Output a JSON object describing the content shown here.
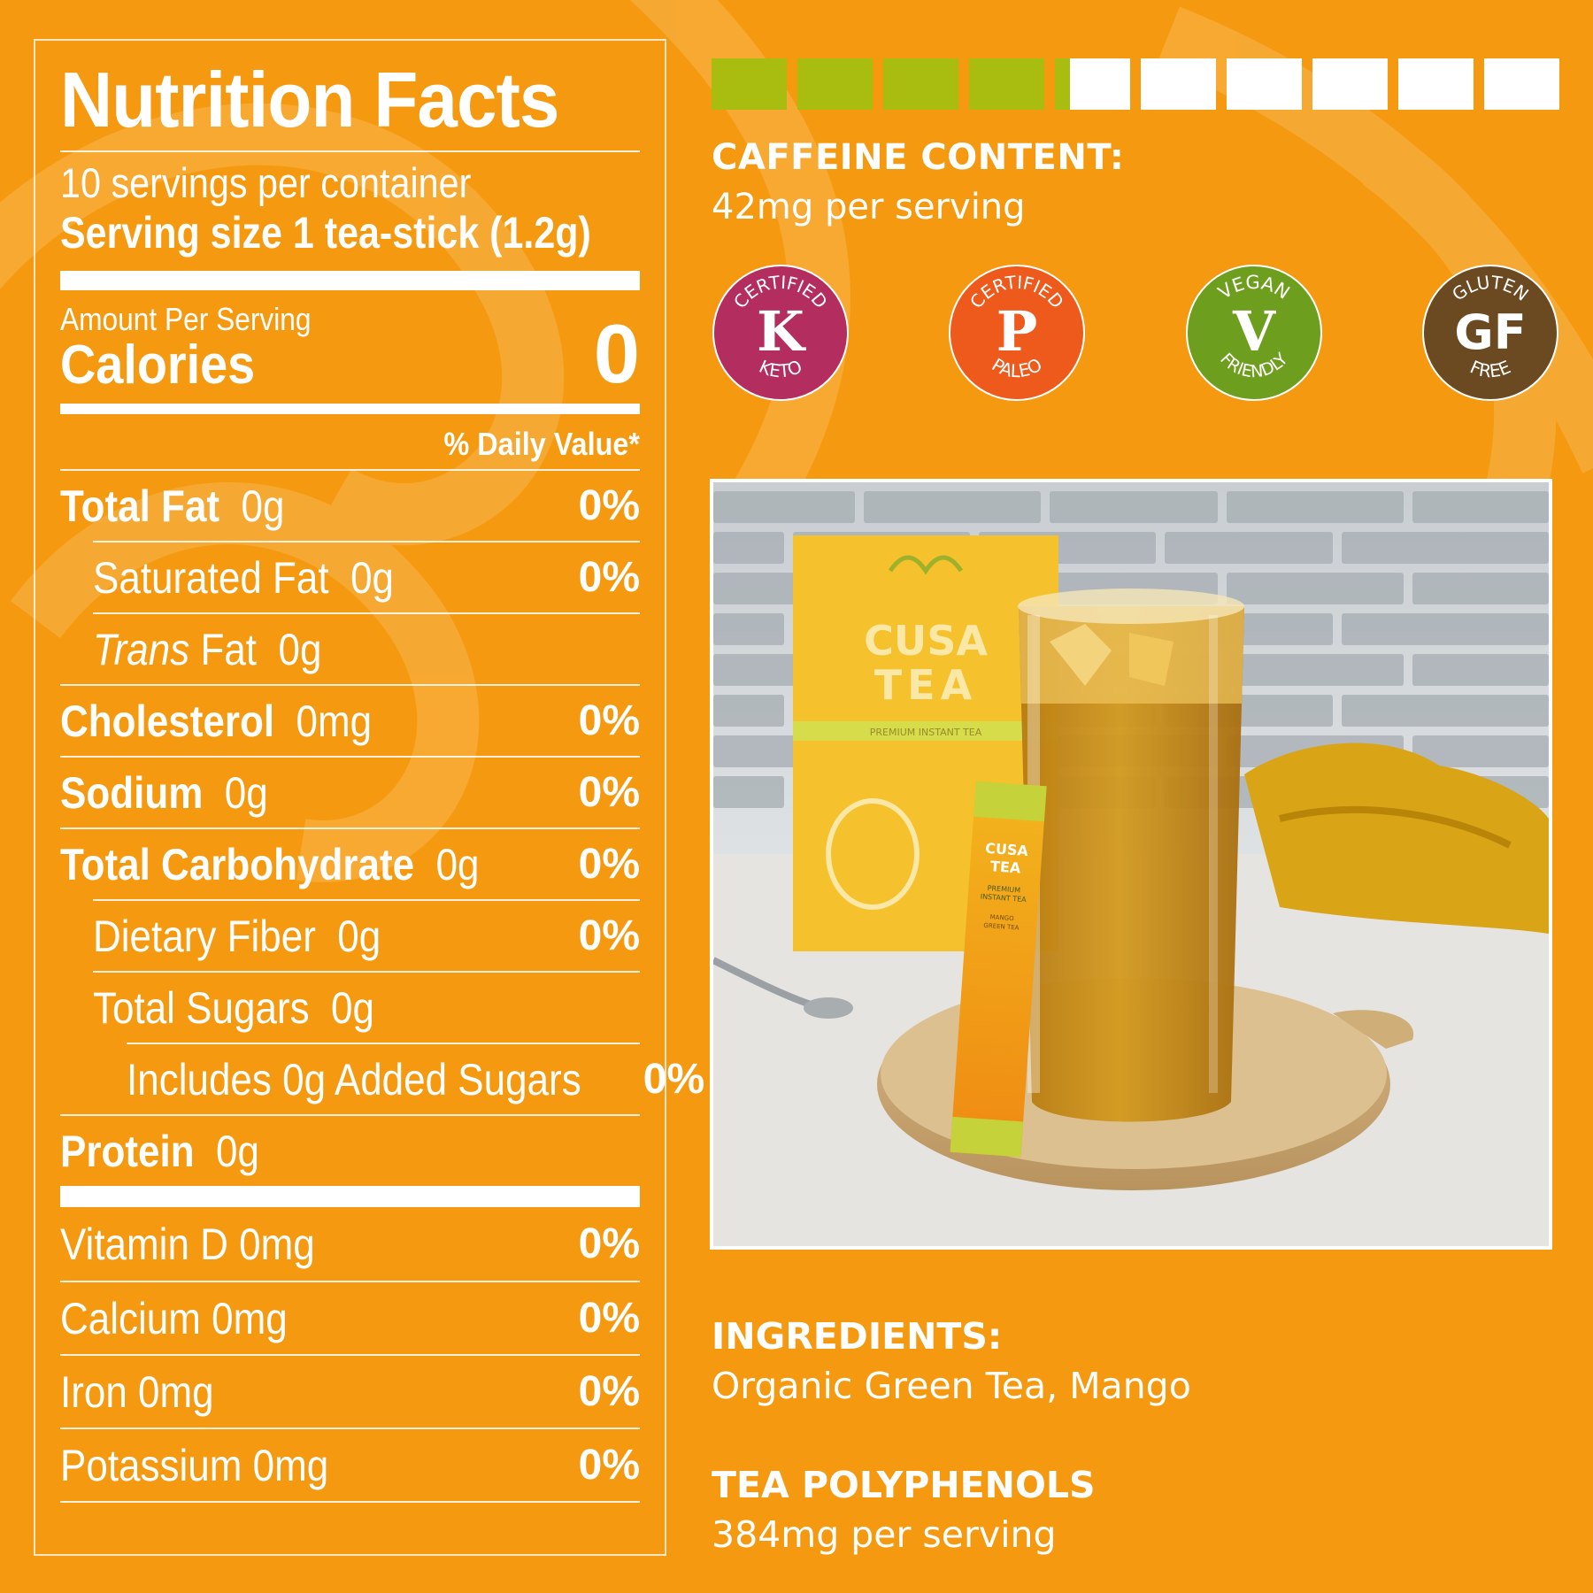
{
  "nutrition": {
    "title": "Nutrition Facts",
    "servings": "10 servings per container",
    "serving_size": "Serving size 1 tea-stick (1.2g)",
    "amount_per": "Amount Per Serving",
    "calories_label": "Calories",
    "calories_value": "0",
    "dv_header": "% Daily Value*",
    "rows": [
      {
        "label": "Total Fat",
        "amount": "0g",
        "pct": "0%"
      },
      {
        "label": "Saturated Fat",
        "amount": "0g",
        "pct": "0%"
      },
      {
        "label_italic": "Trans",
        "label": " Fat",
        "amount": "0g",
        "pct": ""
      },
      {
        "label": "Cholesterol",
        "amount": "0mg",
        "pct": "0%"
      },
      {
        "label": "Sodium",
        "amount": "0g",
        "pct": "0%"
      },
      {
        "label": "Total Carbohydrate",
        "amount": "0g",
        "pct": "0%"
      },
      {
        "label": "Dietary Fiber",
        "amount": "0g",
        "pct": "0%"
      },
      {
        "label": "Total Sugars",
        "amount": "0g",
        "pct": ""
      },
      {
        "label": "Includes 0g Added Sugars",
        "pct": "0%"
      },
      {
        "label": "Protein",
        "amount": "0g",
        "pct": ""
      }
    ],
    "vitamins": [
      {
        "label": "Vitamin D 0mg",
        "pct": "0%"
      },
      {
        "label": "Calcium 0mg",
        "pct": "0%"
      },
      {
        "label": "Iron 0mg",
        "pct": "0%"
      },
      {
        "label": "Potassium 0mg",
        "pct": "0%"
      }
    ]
  },
  "caffeine": {
    "heading": "CAFFEINE CONTENT:",
    "value": "42mg per serving",
    "level_fraction": 0.42,
    "segments_total": 10
  },
  "badges": [
    {
      "top": "CERTIFIED",
      "letter": "K",
      "bottom": "KETO",
      "color": "#B32D5E",
      "icon": "keto-badge-icon"
    },
    {
      "top": "CERTIFIED",
      "letter": "P",
      "bottom": "PALEO",
      "color": "#EE5A1C",
      "icon": "paleo-badge-icon"
    },
    {
      "top": "VEGAN",
      "letter": "V",
      "bottom": "FRIENDLY",
      "color": "#6E9E1E",
      "icon": "vegan-badge-icon"
    },
    {
      "top": "GLUTEN",
      "letter": "GF",
      "bottom": "FREE",
      "color": "#6B4A22",
      "icon": "gluten-free-badge-icon"
    }
  ],
  "photo": {
    "box_brand_1": "CUSA",
    "box_brand_2": "TEA",
    "box_sub": "PREMIUM INSTANT TEA",
    "stick_brand_1": "CUSA",
    "stick_brand_2": "TEA",
    "stick_sub_1": "PREMIUM",
    "stick_sub_2": "INSTANT TEA",
    "stick_flavor_1": "MANGO",
    "stick_flavor_2": "GREEN TEA"
  },
  "ingredients": {
    "heading": "INGREDIENTS:",
    "value": "Organic Green Tea, Mango"
  },
  "polyphenols": {
    "heading": "TEA POLYPHENOLS",
    "value": "384mg per serving"
  },
  "colors": {
    "background": "#F59A10",
    "caffeine_on": "#A8BD10",
    "caffeine_off": "#FFFFFF"
  }
}
